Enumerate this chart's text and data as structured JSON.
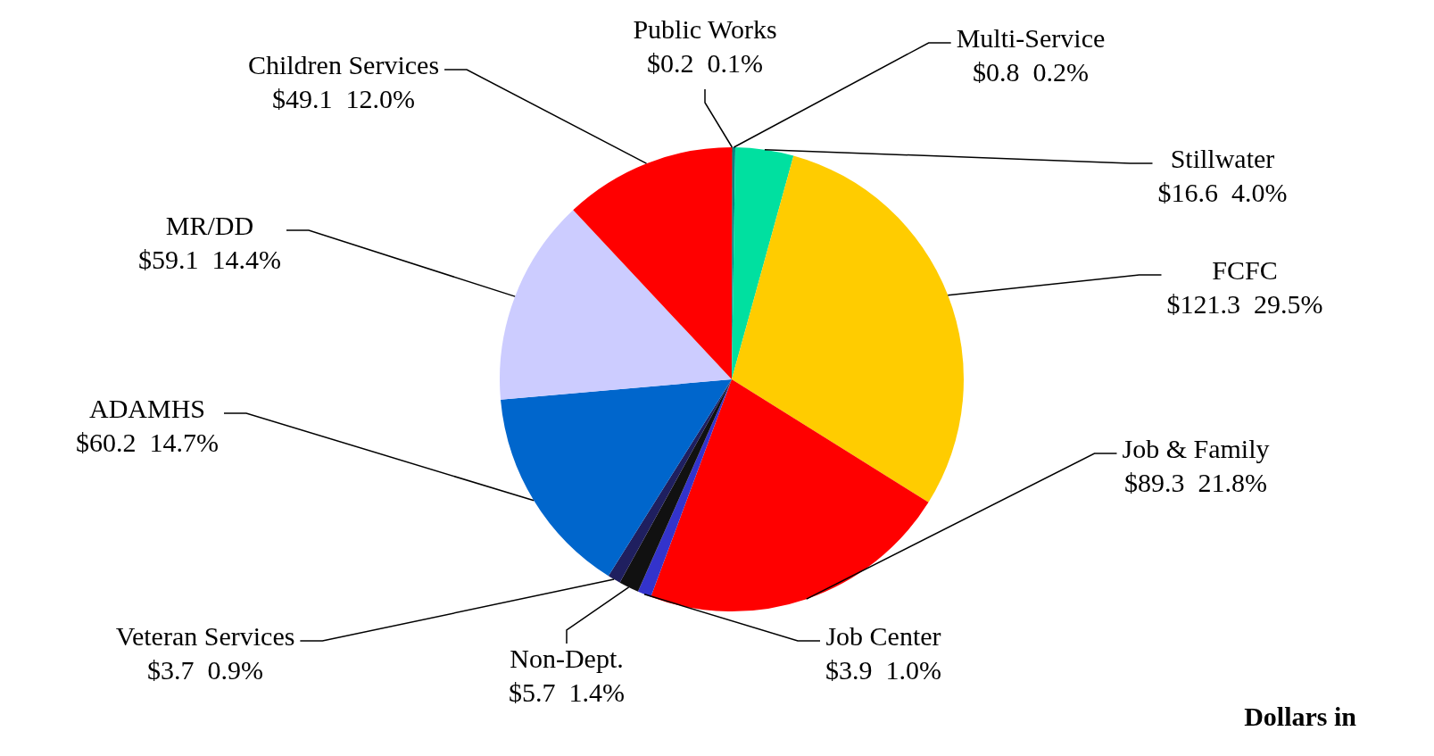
{
  "chart_data": {
    "type": "pie",
    "categories": [
      "Public Works",
      "Multi-Service",
      "Stillwater",
      "FCFC",
      "Job & Family",
      "Job Center",
      "Non-Dept.",
      "Veteran Services",
      "ADAMHS",
      "MR/DD",
      "Children Services"
    ],
    "values": [
      0.2,
      0.8,
      16.6,
      121.3,
      89.3,
      3.9,
      5.7,
      3.7,
      60.2,
      59.1,
      49.1
    ],
    "value_labels": [
      "$0.2  0.1%",
      "$0.8  0.2%",
      "$16.6  4.0%",
      "$121.3  29.5%",
      "$89.3  21.8%",
      "$3.9  1.0%",
      "$5.7  1.4%",
      "$3.7  0.9%",
      "$60.2  14.7%",
      "$59.1  14.4%",
      "$49.1  12.0%"
    ],
    "colors": [
      "#990000",
      "#008080",
      "#00e0a0",
      "#ffcc00",
      "#ff0000",
      "#3333cc",
      "#111111",
      "#1f1f5f",
      "#0066cc",
      "#ccccff",
      "#ff0000"
    ],
    "legend": false,
    "annotations": [
      "Dollars in"
    ]
  }
}
